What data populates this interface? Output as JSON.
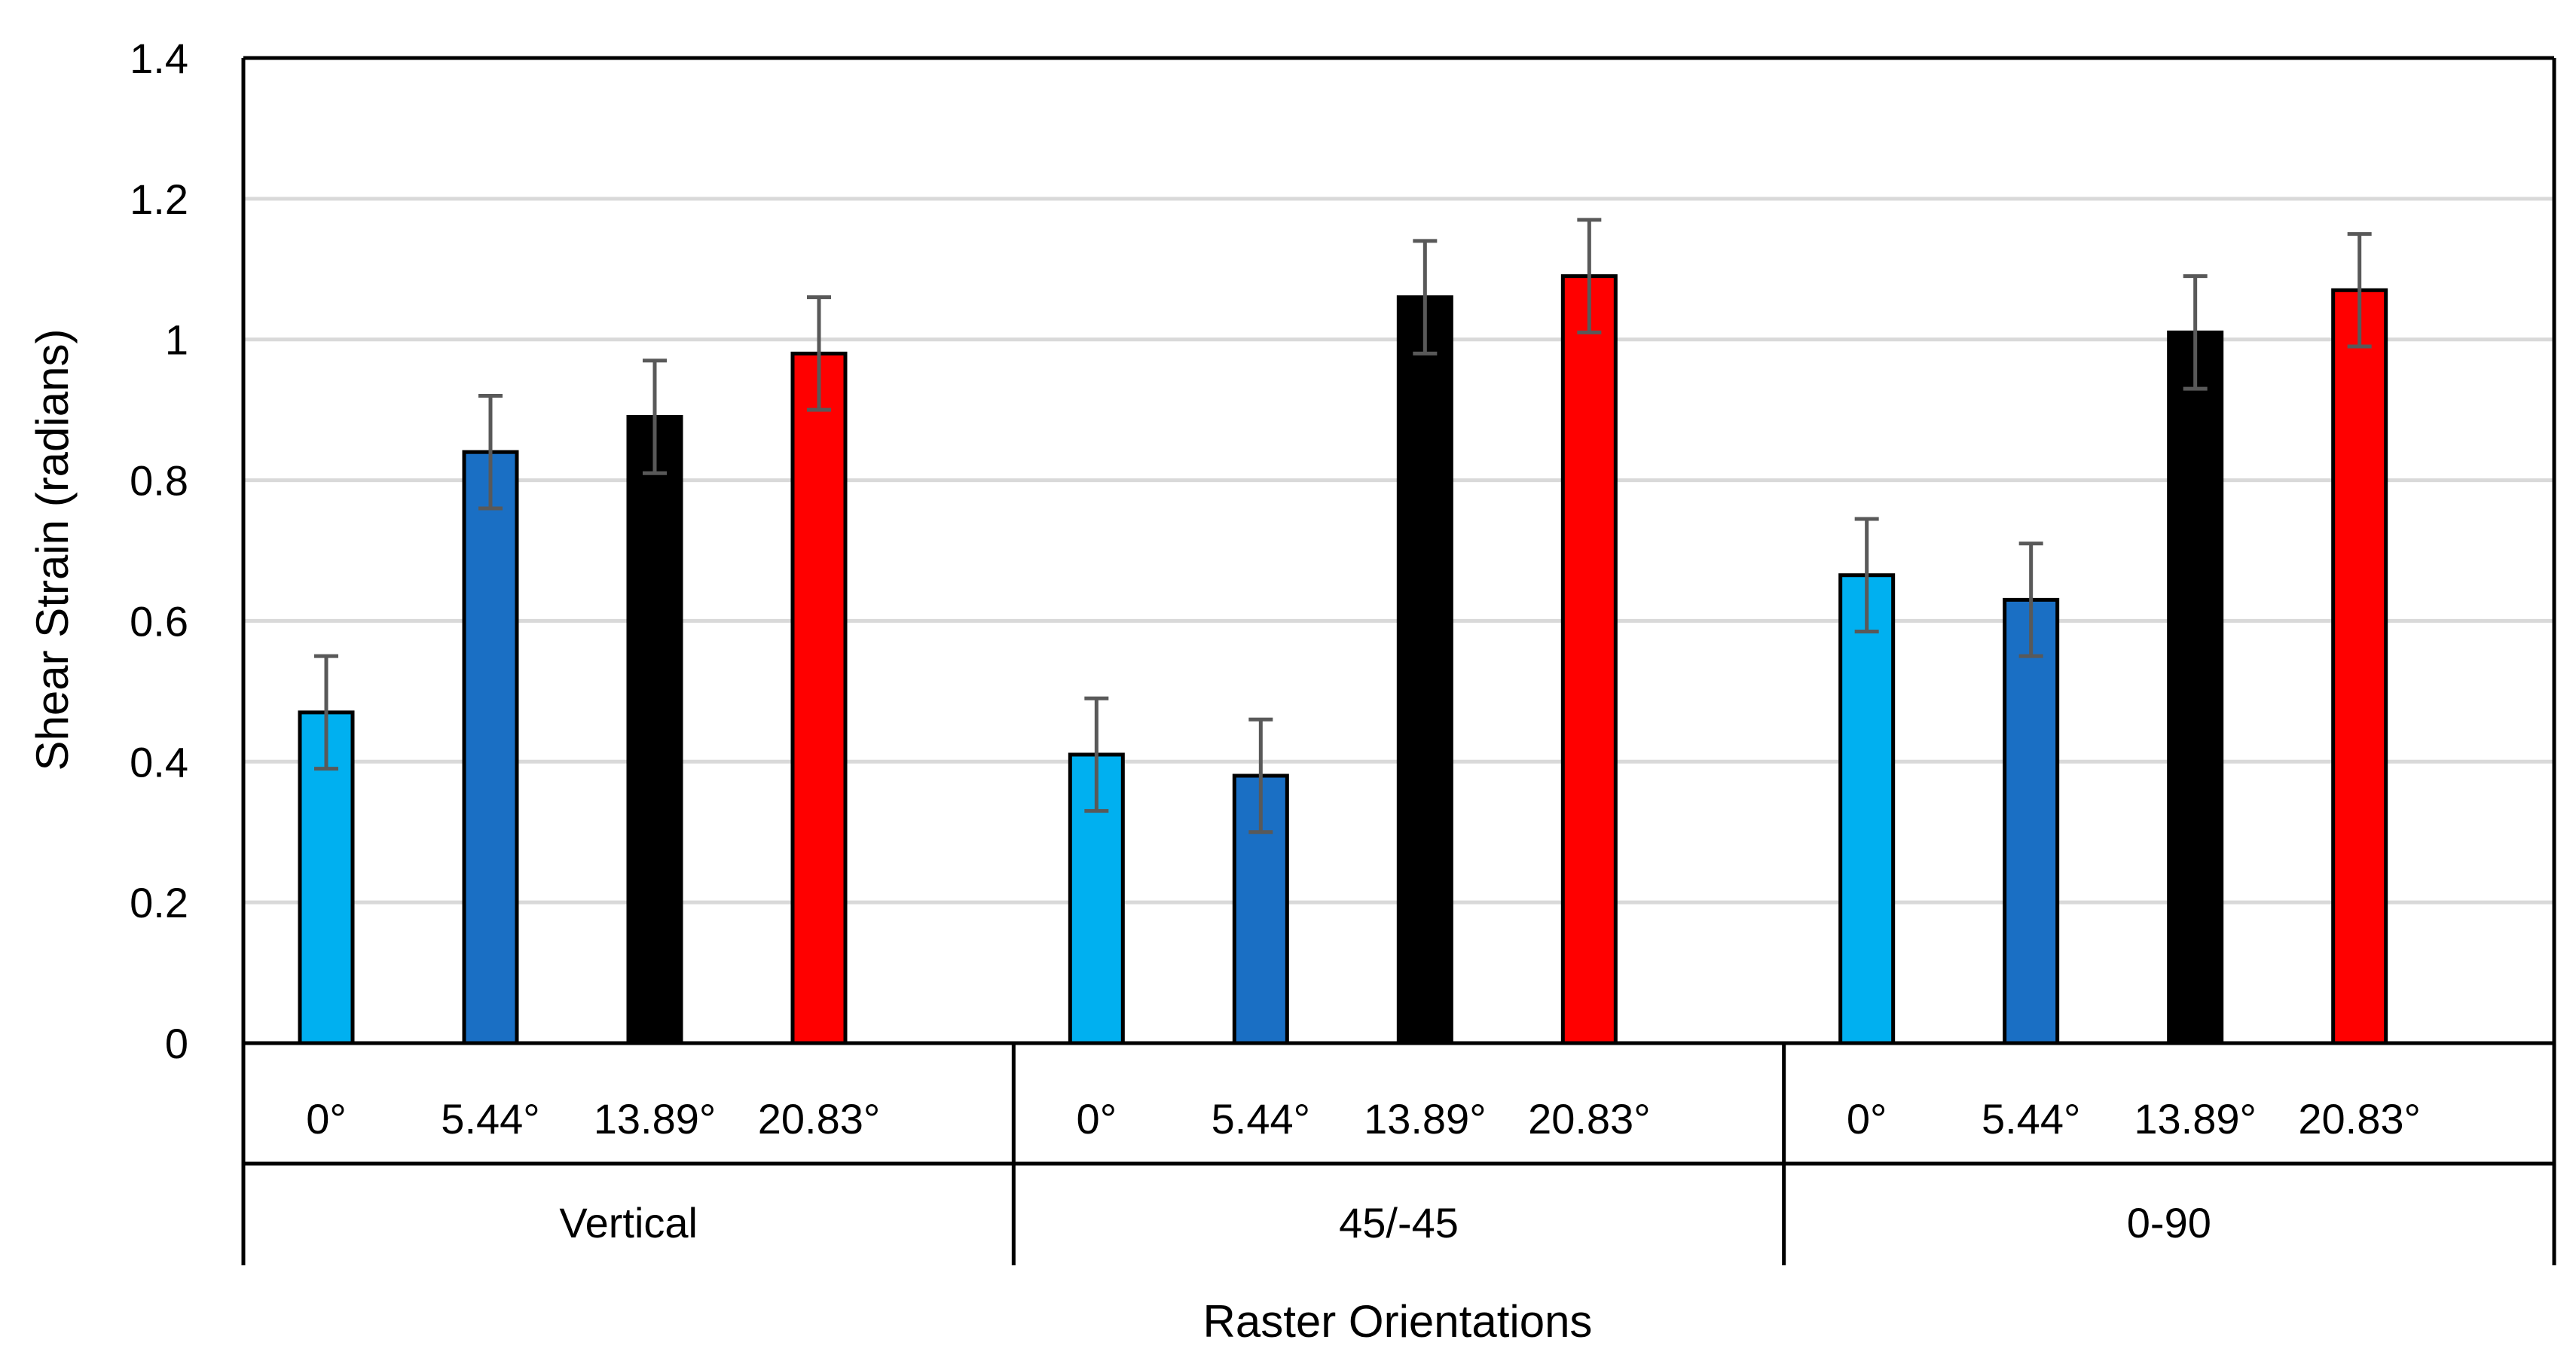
{
  "chart_data": {
    "type": "bar",
    "title": "",
    "xlabel": "Raster Orientations",
    "ylabel": "Shear Strain (radians)",
    "ylim": [
      0,
      1.4
    ],
    "yticks": [
      "0",
      "0.2",
      "0.4",
      "0.6",
      "0.8",
      "1",
      "1.2",
      "1.4"
    ],
    "groups": [
      "Vertical",
      "45/-45",
      "0-90"
    ],
    "categories": [
      "0°",
      "5.44°",
      "13.89°",
      "20.83°"
    ],
    "colors": {
      "0°": "#00b0f0",
      "5.44°": "#1a6fc4",
      "13.89°": "#000000",
      "20.83°": "#ff0000"
    },
    "series": [
      {
        "group": "Vertical",
        "values": [
          0.47,
          0.84,
          0.89,
          0.98
        ],
        "errors": [
          0.08,
          0.08,
          0.08,
          0.08
        ]
      },
      {
        "group": "45/-45",
        "values": [
          0.41,
          0.38,
          1.06,
          1.09
        ],
        "errors": [
          0.08,
          0.08,
          0.08,
          0.08
        ]
      },
      {
        "group": "0-90",
        "values": [
          0.665,
          0.63,
          1.01,
          1.07
        ],
        "errors": [
          0.08,
          0.08,
          0.08,
          0.08
        ]
      }
    ]
  }
}
